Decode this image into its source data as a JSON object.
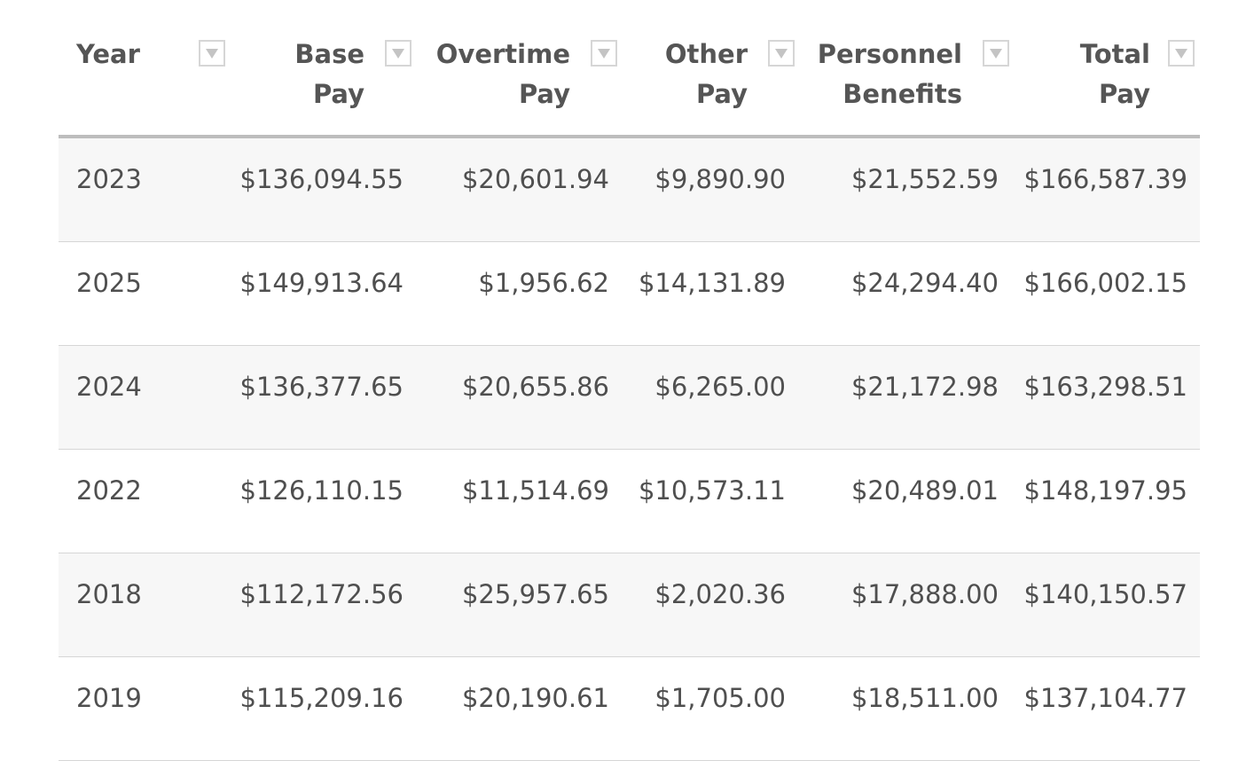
{
  "table": {
    "headers": [
      {
        "key": "year",
        "line1": "Year",
        "line2": ""
      },
      {
        "key": "base",
        "line1": "Base",
        "line2": "Pay"
      },
      {
        "key": "ot",
        "line1": "Overtime",
        "line2": "Pay"
      },
      {
        "key": "other",
        "line1": "Other",
        "line2": "Pay"
      },
      {
        "key": "ben",
        "line1": "Personnel",
        "line2": "Benefits"
      },
      {
        "key": "total",
        "line1": "Total",
        "line2": "Pay"
      }
    ],
    "rows": [
      {
        "year": "2023",
        "base": "$136,094.55",
        "ot": "$20,601.94",
        "other": "$9,890.90",
        "ben": "$21,552.59",
        "total": "$166,587.39"
      },
      {
        "year": "2025",
        "base": "$149,913.64",
        "ot": "$1,956.62",
        "other": "$14,131.89",
        "ben": "$24,294.40",
        "total": "$166,002.15"
      },
      {
        "year": "2024",
        "base": "$136,377.65",
        "ot": "$20,655.86",
        "other": "$6,265.00",
        "ben": "$21,172.98",
        "total": "$163,298.51"
      },
      {
        "year": "2022",
        "base": "$126,110.15",
        "ot": "$11,514.69",
        "other": "$10,573.11",
        "ben": "$20,489.01",
        "total": "$148,197.95"
      },
      {
        "year": "2018",
        "base": "$112,172.56",
        "ot": "$25,957.65",
        "other": "$2,020.36",
        "ben": "$17,888.00",
        "total": "$140,150.57"
      },
      {
        "year": "2019",
        "base": "$115,209.16",
        "ot": "$20,190.61",
        "other": "$1,705.00",
        "ben": "$18,511.00",
        "total": "$137,104.77"
      }
    ]
  },
  "icons": {
    "filter": "filter-dropdown-icon"
  },
  "colors": {
    "header_text": "#555555",
    "body_text": "#4f4f4f",
    "row_alt": "#f7f7f7",
    "header_rule": "#bdbdbd",
    "row_rule": "#d6d6d6",
    "filter_icon": "#c4c4c4"
  }
}
